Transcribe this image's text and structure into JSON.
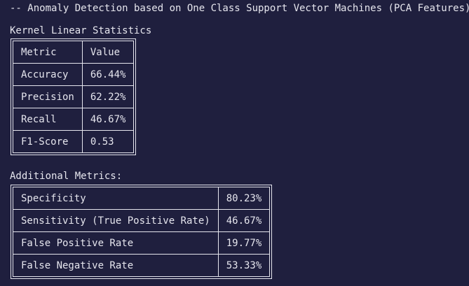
{
  "header": "-- Anomaly Detection based on One Class Support Vector Machines (PCA Features) --",
  "kernel_section": {
    "title": "Kernel Linear Statistics",
    "columns": [
      "Metric",
      "Value"
    ],
    "rows": [
      [
        "Accuracy",
        "66.44%"
      ],
      [
        "Precision",
        "62.22%"
      ],
      [
        "Recall",
        "46.67%"
      ],
      [
        "F1-Score",
        "0.53"
      ]
    ]
  },
  "additional_section": {
    "title": "Additional Metrics:",
    "rows": [
      [
        "Specificity",
        "80.23%"
      ],
      [
        "Sensitivity (True Positive Rate)",
        "46.67%"
      ],
      [
        "False Positive Rate",
        "19.77%"
      ],
      [
        "False Negative Rate",
        "53.33%"
      ]
    ]
  },
  "colors": {
    "background": "#1f1f3e",
    "text": "#e6e6ee"
  }
}
